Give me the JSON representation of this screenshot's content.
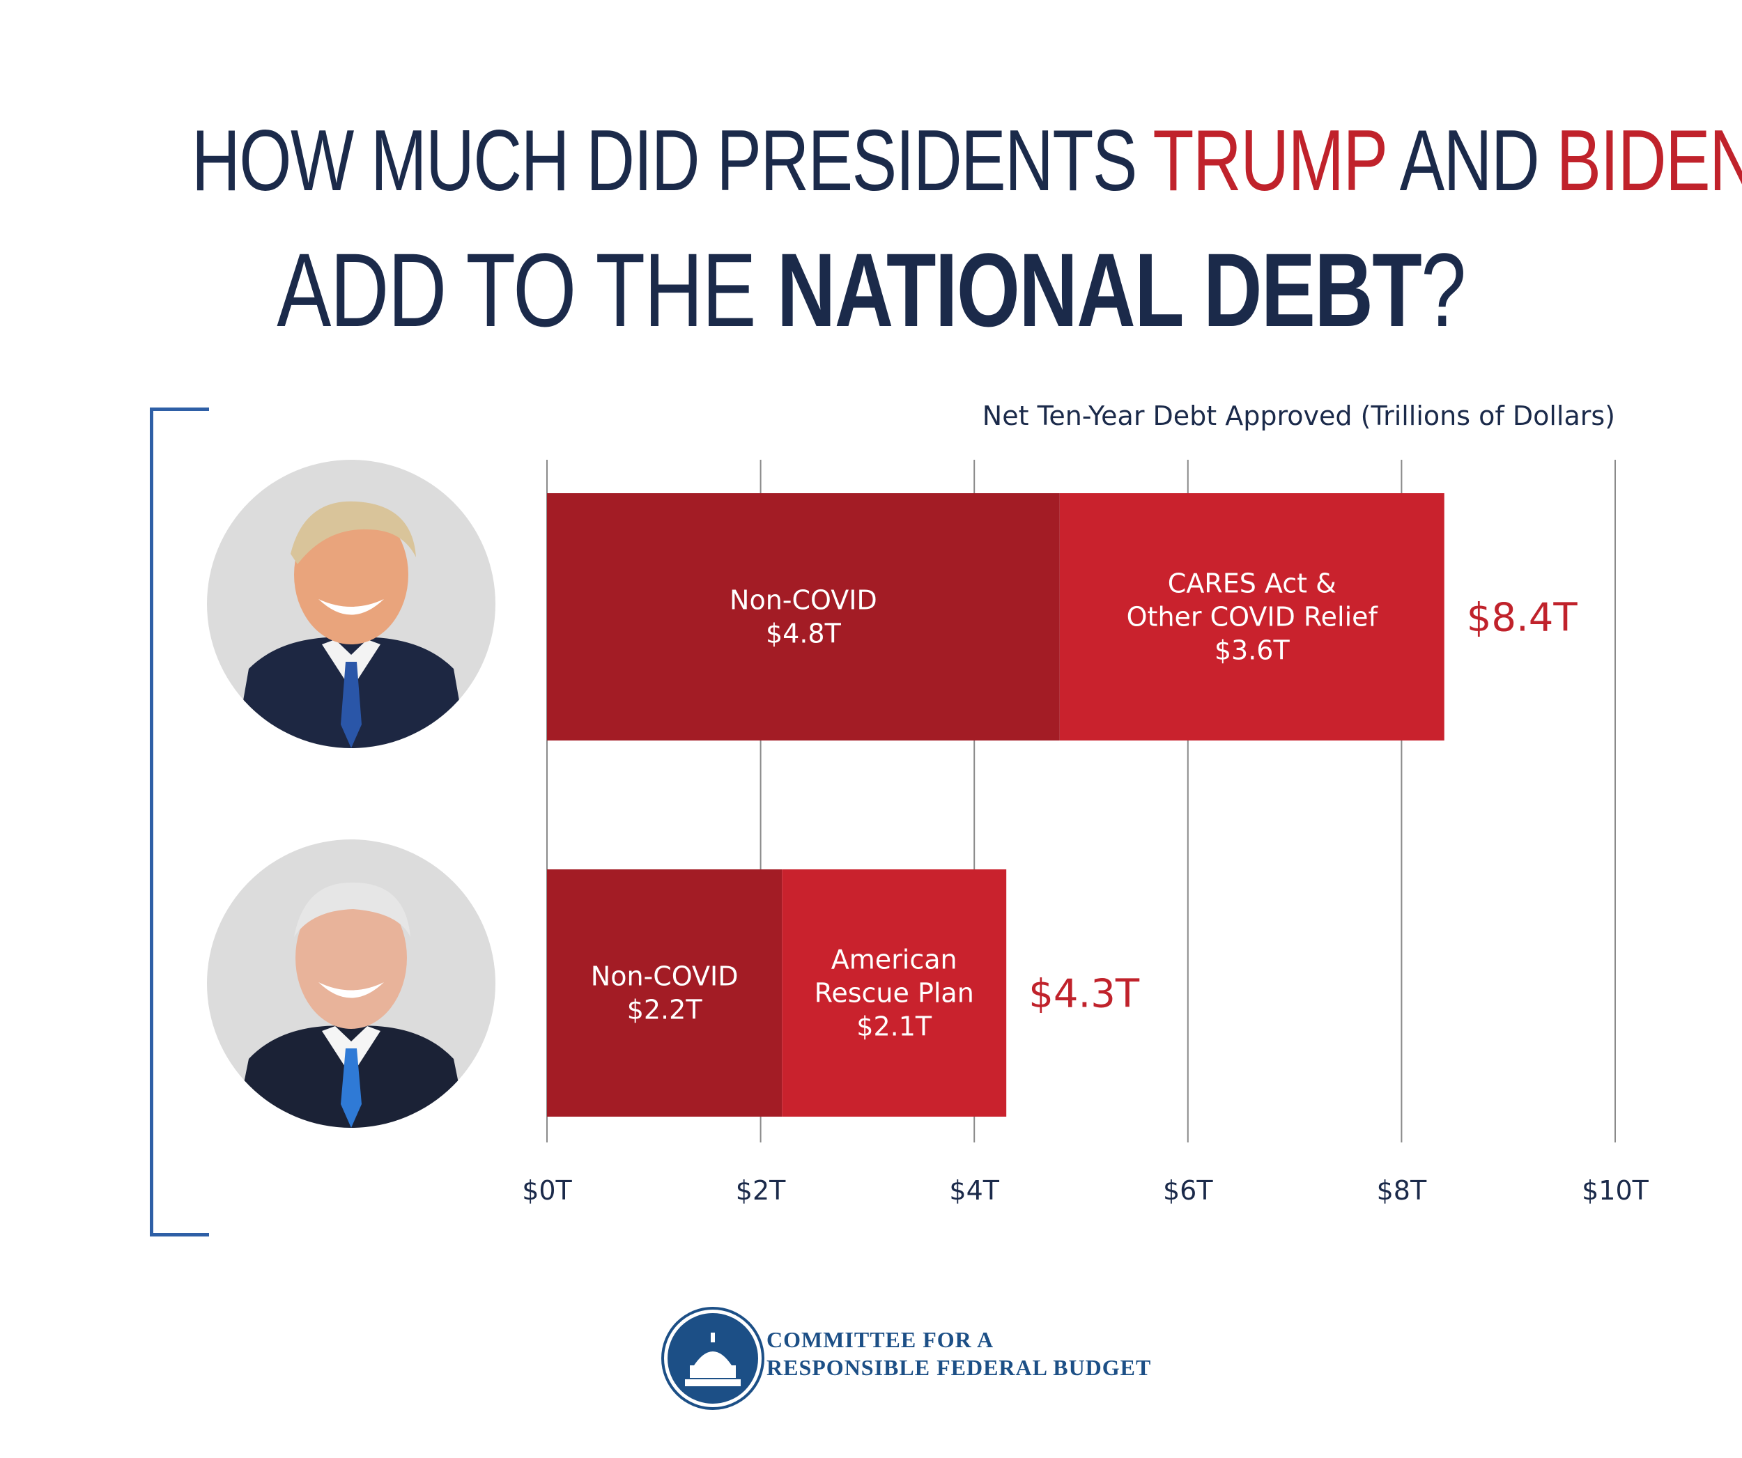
{
  "title": {
    "line1_part1": "HOW MUCH DID PRESIDENTS ",
    "line1_trump": "TRUMP",
    "line1_and": " AND ",
    "line1_biden": "BIDEN",
    "line2_part1": "ADD TO THE ",
    "line2_bold": "NATIONAL DEBT",
    "line2_end": "?"
  },
  "colors": {
    "navy": "#1b2a4a",
    "red": "#c0222b",
    "dark_red": "#a31c25",
    "bright_red": "#c9222d",
    "bracket_blue": "#2e5fa6"
  },
  "chart_data": {
    "type": "bar",
    "orientation": "horizontal",
    "stacked": true,
    "title": "Net Ten-Year Debt Approved (Trillions of Dollars)",
    "xlim": [
      0,
      10
    ],
    "x_ticks": [
      0,
      2,
      4,
      6,
      8,
      10
    ],
    "x_tick_labels": [
      "$0T",
      "$2T",
      "$4T",
      "$6T",
      "$8T",
      "$10T"
    ],
    "categories": [
      "Trump",
      "Biden"
    ],
    "bars": [
      {
        "name": "Trump",
        "total": 8.4,
        "total_label": "$8.4T",
        "segments": [
          {
            "label_lines": [
              "Non-COVID",
              "$4.8T"
            ],
            "value": 4.8,
            "color": "#a31c25"
          },
          {
            "label_lines": [
              "CARES Act &",
              "Other COVID Relief",
              "$3.6T"
            ],
            "value": 3.6,
            "color": "#c9222d"
          }
        ]
      },
      {
        "name": "Biden",
        "total": 4.3,
        "total_label": "$4.3T",
        "segments": [
          {
            "label_lines": [
              "Non-COVID",
              "$2.2T"
            ],
            "value": 2.2,
            "color": "#a31c25"
          },
          {
            "label_lines": [
              "American",
              "Rescue Plan",
              "$2.1T"
            ],
            "value": 2.1,
            "color": "#c9222d"
          }
        ]
      }
    ]
  },
  "logo": {
    "line1": "COMMITTEE FOR A",
    "line2": "RESPONSIBLE FEDERAL BUDGET"
  }
}
